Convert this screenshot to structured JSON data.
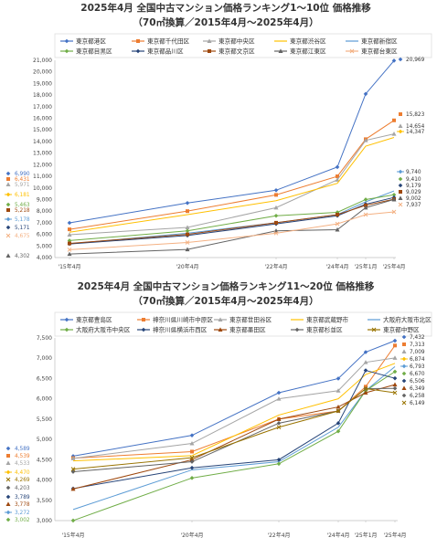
{
  "chart_data": [
    {
      "type": "line",
      "title": "2025年4月 全国中古マンション価格ランキング1～10位 価格推移",
      "subtitle": "（70㎡換算／2015年4月～2025年4月）",
      "x": [
        "'15年4月",
        "'20年4月",
        "'22年4月",
        "'24年4月",
        "'25年1月",
        "'25年4月"
      ],
      "ylim": [
        4000,
        21000
      ],
      "yticks": [
        "4,000",
        "5,000",
        "6,000",
        "7,000",
        "8,000",
        "9,000",
        "10,000",
        "11,000",
        "12,000",
        "13,000",
        "14,000",
        "15,000",
        "16,000",
        "17,000",
        "18,000",
        "19,000",
        "20,000",
        "21,000"
      ],
      "grid": false,
      "legend_position": "top",
      "series": [
        {
          "name": "東京都港区",
          "color": "#4472C4",
          "marker": "diamond",
          "values": [
            6990,
            8700,
            9800,
            11800,
            18100,
            20969
          ],
          "start_label": "6,990",
          "end_label": "20,969"
        },
        {
          "name": "東京都千代田区",
          "color": "#ED7D31",
          "marker": "square",
          "values": [
            6431,
            8000,
            9400,
            11000,
            14200,
            15823
          ],
          "start_label": "6,431",
          "end_label": "15,823"
        },
        {
          "name": "東京都中央区",
          "color": "#A5A5A5",
          "marker": "triangle",
          "values": [
            5971,
            6600,
            8300,
            10700,
            14100,
            14654
          ],
          "start_label": "5,971",
          "end_label": "14,654"
        },
        {
          "name": "東京都渋谷区",
          "color": "#FFC000",
          "marker": "none",
          "values": [
            6181,
            7700,
            8900,
            10400,
            13600,
            14347
          ],
          "start_label": "6,181",
          "end_label": "14,347"
        },
        {
          "name": "東京都新宿区",
          "color": "#5B9BD5",
          "marker": "none",
          "values": [
            5178,
            6100,
            7000,
            7700,
            8800,
            9740
          ],
          "start_label": "5,178",
          "end_label": "9,740"
        },
        {
          "name": "東京都目黒区",
          "color": "#70AD47",
          "marker": "diamond",
          "values": [
            5463,
            6300,
            7600,
            7900,
            9000,
            9410
          ],
          "start_label": "5,463",
          "end_label": "9,410"
        },
        {
          "name": "東京都品川区",
          "color": "#264478",
          "marker": "diamond",
          "values": [
            5171,
            5900,
            6900,
            7600,
            8600,
            9179
          ],
          "start_label": "5,171",
          "end_label": "9,179"
        },
        {
          "name": "東京都文京区",
          "color": "#9E480E",
          "marker": "square",
          "values": [
            5218,
            6000,
            7000,
            7700,
            8500,
            9029
          ],
          "start_label": "5,218",
          "end_label": "9,029"
        },
        {
          "name": "東京都江東区",
          "color": "#636363",
          "marker": "triangle",
          "values": [
            4302,
            4700,
            6300,
            6400,
            8300,
            9002
          ],
          "start_label": "4,302",
          "end_label": "9,002"
        },
        {
          "name": "東京都台東区",
          "color": "#F4B183",
          "marker": "x",
          "values": [
            4675,
            5300,
            6100,
            6900,
            7700,
            7937
          ],
          "start_label": "4,675",
          "end_label": "7,937"
        }
      ]
    },
    {
      "type": "line",
      "title": "2025年4月 全国中古マンション価格ランキング11～20位 価格推移",
      "subtitle": "（70㎡換算／2015年4月～2025年4月）",
      "x": [
        "'15年4月",
        "'20年4月",
        "'22年4月",
        "'24年4月",
        "'25年1月",
        "'25年4月"
      ],
      "ylim": [
        3000,
        7500
      ],
      "yticks": [
        "3,000",
        "3,500",
        "4,000",
        "4,500",
        "5,000",
        "5,500",
        "6,000",
        "6,500",
        "7,000",
        "7,500"
      ],
      "grid": false,
      "legend_position": "top",
      "series": [
        {
          "name": "東京都豊島区",
          "color": "#4472C4",
          "marker": "diamond",
          "values": [
            4589,
            5100,
            6150,
            6500,
            7150,
            7432
          ],
          "start_label": "4,589",
          "end_label": "7,432"
        },
        {
          "name": "神奈川県川崎市中原区",
          "color": "#ED7D31",
          "marker": "square",
          "values": [
            4539,
            4700,
            5500,
            5700,
            6300,
            7313
          ],
          "start_label": "4,539",
          "end_label": "7,313"
        },
        {
          "name": "東京都世田谷区",
          "color": "#A5A5A5",
          "marker": "triangle",
          "values": [
            4533,
            4900,
            6000,
            6200,
            6900,
            7009
          ],
          "start_label": "4,533",
          "end_label": "7,009"
        },
        {
          "name": "東京都武蔵野市",
          "color": "#FFC000",
          "marker": "none",
          "values": [
            4470,
            4600,
            5600,
            6000,
            6600,
            6874
          ],
          "start_label": "4,470",
          "end_label": "6,874"
        },
        {
          "name": "大阪府大阪市北区",
          "color": "#5B9BD5",
          "marker": "none",
          "values": [
            3272,
            4250,
            4450,
            5300,
            6200,
            6793
          ],
          "start_label": "3,272",
          "end_label": "6,793"
        },
        {
          "name": "大阪府大阪市中央区",
          "color": "#70AD47",
          "marker": "diamond",
          "values": [
            3002,
            4050,
            4400,
            5200,
            6200,
            6670
          ],
          "start_label": "3,002",
          "end_label": "6,670"
        },
        {
          "name": "神奈川県横浜市西区",
          "color": "#264478",
          "marker": "diamond",
          "values": [
            3789,
            4300,
            4500,
            5400,
            6700,
            6506
          ],
          "start_label": "3,789",
          "end_label": "6,506"
        },
        {
          "name": "東京都墨田区",
          "color": "#9E480E",
          "marker": "triangle",
          "values": [
            3778,
            4500,
            5500,
            5800,
            6150,
            6349
          ],
          "start_label": "3,778",
          "end_label": "6,349"
        },
        {
          "name": "東京都杉並区",
          "color": "#636363",
          "marker": "diamond",
          "values": [
            4203,
            4450,
            5400,
            5700,
            6250,
            6258
          ],
          "start_label": "4,203",
          "end_label": "6,258"
        },
        {
          "name": "東京都中野区",
          "color": "#997300",
          "marker": "x",
          "values": [
            4269,
            4550,
            5300,
            5700,
            6250,
            6149
          ],
          "start_label": "4,269",
          "end_label": "6,149"
        }
      ]
    }
  ]
}
